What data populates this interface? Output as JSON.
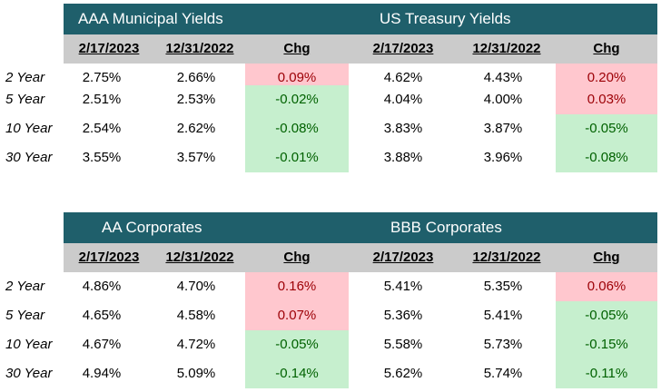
{
  "tables": [
    {
      "left_title": "AAA Municipal Yields",
      "right_title": "US Treasury Yields",
      "headers": [
        "2/17/2023",
        "12/31/2022",
        "Chg",
        "2/17/2023",
        "12/31/2022",
        "Chg"
      ],
      "rows": [
        {
          "label": "2 Year",
          "l1": "2.75%",
          "l2": "2.66%",
          "lchg": "0.09%",
          "r1": "4.62%",
          "r2": "4.43%",
          "rchg": "0.20%"
        },
        {
          "label": "5 Year",
          "l1": "2.51%",
          "l2": "2.53%",
          "lchg": "-0.02%",
          "r1": "4.04%",
          "r2": "4.00%",
          "rchg": "0.03%"
        },
        {
          "label": "10 Year",
          "l1": "2.54%",
          "l2": "2.62%",
          "lchg": "-0.08%",
          "r1": "3.83%",
          "r2": "3.87%",
          "rchg": "-0.05%"
        },
        {
          "label": "30 Year",
          "l1": "3.55%",
          "l2": "3.57%",
          "lchg": "-0.01%",
          "r1": "3.88%",
          "r2": "3.96%",
          "rchg": "-0.08%"
        }
      ]
    },
    {
      "left_title": "AA Corporates",
      "right_title": "BBB Corporates",
      "headers": [
        "2/17/2023",
        "12/31/2022",
        "Chg",
        "2/17/2023",
        "12/31/2022",
        "Chg"
      ],
      "rows": [
        {
          "label": "2 Year",
          "l1": "4.86%",
          "l2": "4.70%",
          "lchg": "0.16%",
          "r1": "5.41%",
          "r2": "5.35%",
          "rchg": "0.06%"
        },
        {
          "label": "5 Year",
          "l1": "4.65%",
          "l2": "4.58%",
          "lchg": "0.07%",
          "r1": "5.36%",
          "r2": "5.41%",
          "rchg": "-0.05%"
        },
        {
          "label": "10 Year",
          "l1": "4.67%",
          "l2": "4.72%",
          "lchg": "-0.05%",
          "r1": "5.58%",
          "r2": "5.73%",
          "rchg": "-0.15%"
        },
        {
          "label": "30 Year",
          "l1": "4.94%",
          "l2": "5.09%",
          "lchg": "-0.14%",
          "r1": "5.62%",
          "r2": "5.74%",
          "rchg": "-0.11%"
        }
      ]
    }
  ],
  "colors": {
    "title_bar": "#1f5f6b",
    "header_bar": "#cbcbcb",
    "increase_fill": "#ffc7ce",
    "increase_text": "#9c0006",
    "decrease_fill": "#c6efce",
    "decrease_text": "#006100"
  }
}
